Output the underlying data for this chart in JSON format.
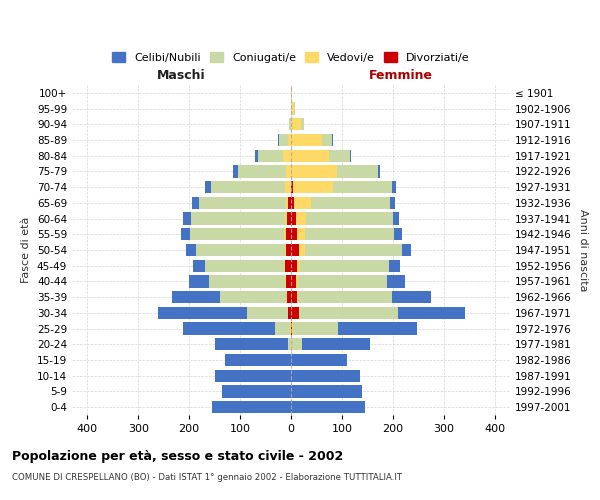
{
  "age_groups_bottom_to_top": [
    "0-4",
    "5-9",
    "10-14",
    "15-19",
    "20-24",
    "25-29",
    "30-34",
    "35-39",
    "40-44",
    "45-49",
    "50-54",
    "55-59",
    "60-64",
    "65-69",
    "70-74",
    "75-79",
    "80-84",
    "85-89",
    "90-94",
    "95-99",
    "100+"
  ],
  "birth_years_bottom_to_top": [
    "1997-2001",
    "1992-1996",
    "1987-1991",
    "1982-1986",
    "1977-1981",
    "1972-1976",
    "1967-1971",
    "1962-1966",
    "1957-1961",
    "1952-1956",
    "1947-1951",
    "1942-1946",
    "1937-1941",
    "1932-1936",
    "1927-1931",
    "1922-1926",
    "1917-1921",
    "1912-1916",
    "1907-1911",
    "1902-1906",
    "≤ 1901"
  ],
  "males": {
    "celibe": [
      155,
      135,
      150,
      130,
      145,
      180,
      175,
      95,
      40,
      25,
      20,
      18,
      16,
      15,
      12,
      8,
      5,
      2,
      0,
      0,
      0
    ],
    "coniugato": [
      0,
      0,
      0,
      0,
      5,
      30,
      80,
      130,
      150,
      155,
      175,
      185,
      185,
      170,
      145,
      95,
      50,
      18,
      3,
      0,
      0
    ],
    "vedovo": [
      0,
      0,
      0,
      0,
      0,
      2,
      1,
      1,
      1,
      1,
      2,
      3,
      3,
      5,
      12,
      10,
      15,
      5,
      0,
      0,
      0
    ],
    "divorziato": [
      0,
      0,
      0,
      0,
      0,
      0,
      5,
      8,
      10,
      12,
      10,
      10,
      8,
      5,
      0,
      0,
      0,
      0,
      0,
      0,
      0
    ]
  },
  "females": {
    "nubile": [
      145,
      140,
      135,
      110,
      135,
      155,
      130,
      75,
      35,
      22,
      18,
      15,
      12,
      10,
      8,
      5,
      3,
      2,
      0,
      0,
      0
    ],
    "coniugata": [
      0,
      0,
      0,
      0,
      20,
      90,
      195,
      185,
      175,
      175,
      190,
      175,
      170,
      155,
      115,
      80,
      40,
      20,
      5,
      2,
      0
    ],
    "vedova": [
      0,
      0,
      0,
      0,
      1,
      1,
      1,
      2,
      3,
      5,
      12,
      15,
      20,
      35,
      80,
      90,
      75,
      60,
      20,
      5,
      2
    ],
    "divorziata": [
      0,
      0,
      0,
      0,
      0,
      2,
      15,
      12,
      10,
      12,
      15,
      12,
      10,
      5,
      3,
      0,
      0,
      0,
      0,
      0,
      0
    ]
  },
  "colors": {
    "celibe": "#4472c4",
    "coniugato": "#c8d9a5",
    "vedovo": "#ffd966",
    "divorziato": "#cc0000"
  },
  "legend_labels": [
    "Celibi/Nubili",
    "Coniugati/e",
    "Vedovi/e",
    "Divorziati/e"
  ],
  "title": "Popolazione per età, sesso e stato civile - 2002",
  "subtitle": "COMUNE DI CRESPELLANO (BO) - Dati ISTAT 1° gennaio 2002 - Elaborazione TUTTITALIA.IT",
  "xlabel_left": "Maschi",
  "xlabel_right": "Femmine",
  "ylabel_left": "Fasce di età",
  "ylabel_right": "Anni di nascita",
  "xlim": 430,
  "background_color": "#ffffff",
  "grid_color": "#cccccc"
}
